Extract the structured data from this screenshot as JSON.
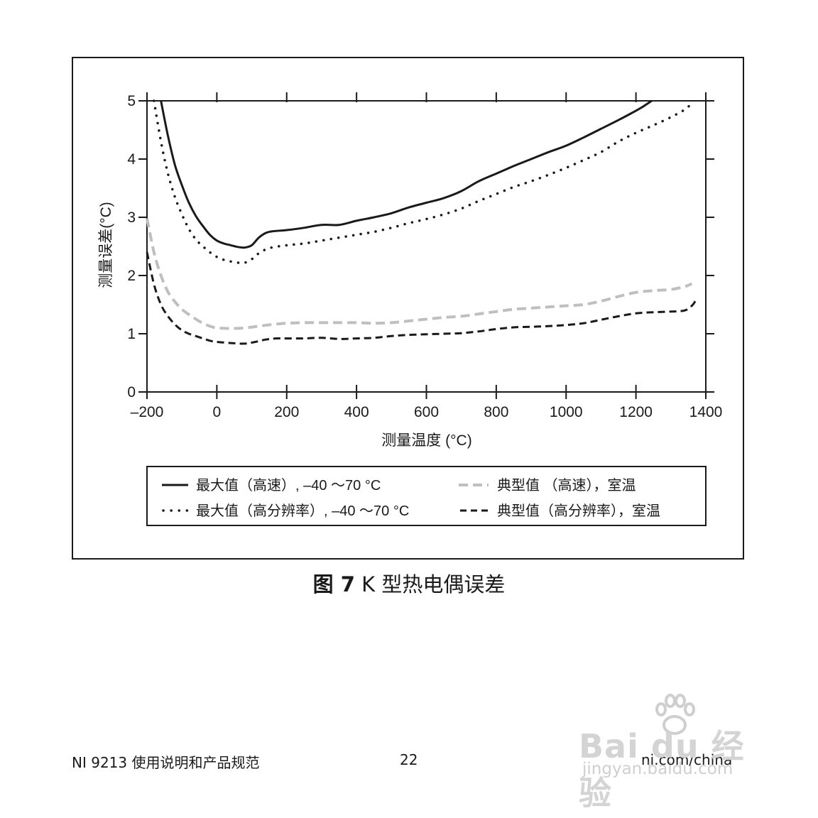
{
  "chart_data": {
    "type": "line",
    "xlabel": "测量温度 (°C)",
    "ylabel": "测量误差(°C)",
    "xlim": [
      -200,
      1400
    ],
    "ylim": [
      0,
      5
    ],
    "xticks": [
      -200,
      0,
      200,
      400,
      600,
      800,
      1000,
      1200,
      1400
    ],
    "xtick_labels": [
      "–200",
      "0",
      "200",
      "400",
      "600",
      "800",
      "1000",
      "1200",
      "1400"
    ],
    "yticks": [
      0,
      1,
      2,
      3,
      4,
      5
    ],
    "ytick_labels": [
      "0",
      "1",
      "2",
      "3",
      "4",
      "5"
    ],
    "grid": false,
    "legend_position": "bottom",
    "series": [
      {
        "name": "最大值（高速）, –40 ～70 °C",
        "style": "solid",
        "color": "#1a1a1a",
        "points": [
          [
            -160,
            5.0
          ],
          [
            -140,
            4.4
          ],
          [
            -120,
            3.9
          ],
          [
            -100,
            3.55
          ],
          [
            -80,
            3.25
          ],
          [
            -60,
            3.02
          ],
          [
            -40,
            2.85
          ],
          [
            -20,
            2.7
          ],
          [
            0,
            2.6
          ],
          [
            20,
            2.55
          ],
          [
            40,
            2.52
          ],
          [
            60,
            2.49
          ],
          [
            80,
            2.48
          ],
          [
            100,
            2.52
          ],
          [
            120,
            2.65
          ],
          [
            140,
            2.73
          ],
          [
            160,
            2.76
          ],
          [
            200,
            2.78
          ],
          [
            250,
            2.82
          ],
          [
            300,
            2.87
          ],
          [
            350,
            2.87
          ],
          [
            400,
            2.94
          ],
          [
            450,
            3.0
          ],
          [
            500,
            3.07
          ],
          [
            550,
            3.17
          ],
          [
            600,
            3.25
          ],
          [
            650,
            3.33
          ],
          [
            700,
            3.45
          ],
          [
            750,
            3.62
          ],
          [
            800,
            3.75
          ],
          [
            850,
            3.88
          ],
          [
            900,
            4.0
          ],
          [
            950,
            4.12
          ],
          [
            1000,
            4.23
          ],
          [
            1050,
            4.37
          ],
          [
            1100,
            4.52
          ],
          [
            1150,
            4.67
          ],
          [
            1200,
            4.83
          ],
          [
            1220,
            4.9
          ],
          [
            1245,
            5.0
          ]
        ]
      },
      {
        "name": "最大值（高分辨率）, –40 ～70 °C",
        "style": "dotted",
        "color": "#1a1a1a",
        "points": [
          [
            -180,
            5.0
          ],
          [
            -160,
            4.3
          ],
          [
            -140,
            3.75
          ],
          [
            -120,
            3.35
          ],
          [
            -100,
            3.05
          ],
          [
            -80,
            2.8
          ],
          [
            -60,
            2.62
          ],
          [
            -40,
            2.5
          ],
          [
            -20,
            2.4
          ],
          [
            0,
            2.32
          ],
          [
            20,
            2.27
          ],
          [
            40,
            2.24
          ],
          [
            60,
            2.22
          ],
          [
            80,
            2.22
          ],
          [
            100,
            2.28
          ],
          [
            120,
            2.38
          ],
          [
            150,
            2.47
          ],
          [
            200,
            2.52
          ],
          [
            250,
            2.55
          ],
          [
            300,
            2.6
          ],
          [
            350,
            2.65
          ],
          [
            400,
            2.7
          ],
          [
            450,
            2.75
          ],
          [
            500,
            2.82
          ],
          [
            550,
            2.9
          ],
          [
            600,
            2.97
          ],
          [
            650,
            3.05
          ],
          [
            700,
            3.15
          ],
          [
            750,
            3.28
          ],
          [
            800,
            3.4
          ],
          [
            850,
            3.52
          ],
          [
            900,
            3.62
          ],
          [
            950,
            3.73
          ],
          [
            1000,
            3.85
          ],
          [
            1050,
            3.98
          ],
          [
            1100,
            4.12
          ],
          [
            1150,
            4.3
          ],
          [
            1200,
            4.45
          ],
          [
            1250,
            4.58
          ],
          [
            1300,
            4.72
          ],
          [
            1340,
            4.85
          ],
          [
            1355,
            4.93
          ]
        ]
      },
      {
        "name": "典型值 （高速），室温",
        "style": "dashed",
        "color": "#bfbfbf",
        "points": [
          [
            -200,
            2.98
          ],
          [
            -180,
            2.4
          ],
          [
            -160,
            2.0
          ],
          [
            -140,
            1.72
          ],
          [
            -120,
            1.55
          ],
          [
            -100,
            1.42
          ],
          [
            -80,
            1.33
          ],
          [
            -60,
            1.25
          ],
          [
            -40,
            1.18
          ],
          [
            -20,
            1.13
          ],
          [
            0,
            1.1
          ],
          [
            40,
            1.09
          ],
          [
            80,
            1.1
          ],
          [
            120,
            1.13
          ],
          [
            160,
            1.16
          ],
          [
            200,
            1.18
          ],
          [
            250,
            1.19
          ],
          [
            300,
            1.19
          ],
          [
            350,
            1.19
          ],
          [
            400,
            1.19
          ],
          [
            450,
            1.18
          ],
          [
            500,
            1.19
          ],
          [
            550,
            1.22
          ],
          [
            600,
            1.25
          ],
          [
            650,
            1.28
          ],
          [
            700,
            1.3
          ],
          [
            750,
            1.34
          ],
          [
            800,
            1.38
          ],
          [
            850,
            1.42
          ],
          [
            900,
            1.44
          ],
          [
            950,
            1.46
          ],
          [
            1000,
            1.48
          ],
          [
            1050,
            1.5
          ],
          [
            1100,
            1.56
          ],
          [
            1150,
            1.64
          ],
          [
            1200,
            1.71
          ],
          [
            1250,
            1.74
          ],
          [
            1300,
            1.76
          ],
          [
            1340,
            1.81
          ],
          [
            1360,
            1.86
          ]
        ]
      },
      {
        "name": "典型值（高分辨率），室温",
        "style": "dashed",
        "color": "#1a1a1a",
        "points": [
          [
            -200,
            2.4
          ],
          [
            -180,
            1.85
          ],
          [
            -160,
            1.5
          ],
          [
            -140,
            1.3
          ],
          [
            -120,
            1.16
          ],
          [
            -100,
            1.06
          ],
          [
            -80,
            1.0
          ],
          [
            -60,
            0.96
          ],
          [
            -40,
            0.92
          ],
          [
            -20,
            0.88
          ],
          [
            0,
            0.86
          ],
          [
            40,
            0.84
          ],
          [
            80,
            0.83
          ],
          [
            110,
            0.86
          ],
          [
            140,
            0.9
          ],
          [
            170,
            0.92
          ],
          [
            200,
            0.92
          ],
          [
            250,
            0.92
          ],
          [
            300,
            0.93
          ],
          [
            350,
            0.91
          ],
          [
            400,
            0.92
          ],
          [
            450,
            0.93
          ],
          [
            500,
            0.96
          ],
          [
            550,
            0.98
          ],
          [
            600,
            0.99
          ],
          [
            650,
            1.0
          ],
          [
            700,
            1.01
          ],
          [
            750,
            1.04
          ],
          [
            800,
            1.08
          ],
          [
            850,
            1.11
          ],
          [
            900,
            1.12
          ],
          [
            950,
            1.13
          ],
          [
            1000,
            1.15
          ],
          [
            1050,
            1.18
          ],
          [
            1100,
            1.24
          ],
          [
            1150,
            1.3
          ],
          [
            1200,
            1.35
          ],
          [
            1250,
            1.37
          ],
          [
            1300,
            1.38
          ],
          [
            1340,
            1.4
          ],
          [
            1360,
            1.48
          ],
          [
            1370,
            1.56
          ]
        ]
      }
    ]
  },
  "caption": {
    "figure_label": "图 7",
    "title": "K 型热电偶误差"
  },
  "footer": {
    "doc_title": "NI 9213 使用说明和产品规范",
    "page_number": "22",
    "site": "ni.com/china"
  },
  "watermark": {
    "logo_text": "Bai du 经验",
    "url": "jingyan.baidu.com"
  }
}
